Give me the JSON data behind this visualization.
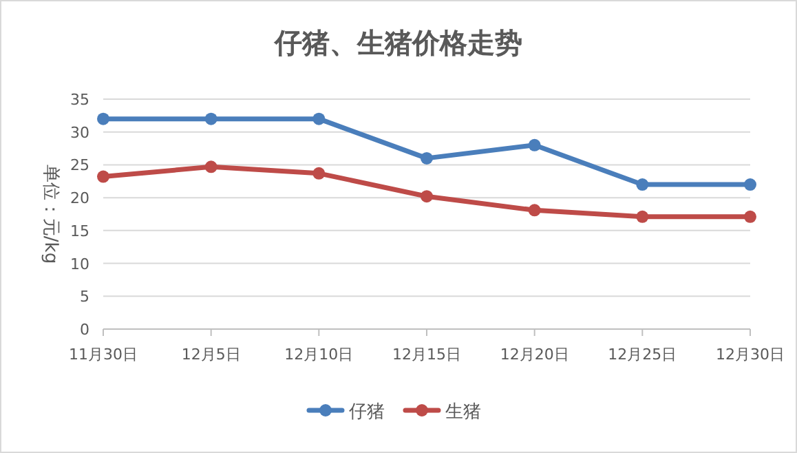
{
  "chart_data": {
    "type": "line",
    "title": "仔猪、生猪价格走势",
    "ylabel": "单位：元/kg",
    "categories": [
      "11月30日",
      "12月5日",
      "12月10日",
      "12月15日",
      "12月20日",
      "12月25日",
      "12月30日"
    ],
    "series": [
      {
        "name": "仔猪",
        "color": "#4a7ebb",
        "values": [
          32,
          32,
          32,
          26,
          28,
          22,
          22
        ]
      },
      {
        "name": "生猪",
        "color": "#be4b48",
        "values": [
          23.2,
          24.7,
          23.7,
          20.2,
          18.1,
          17.1,
          17.1
        ]
      }
    ],
    "ylim": [
      0,
      35
    ],
    "yticks": [
      0,
      5,
      10,
      15,
      20,
      25,
      30,
      35
    ],
    "grid": "y",
    "legend": "bottom",
    "marker": "circle",
    "line_style": "solid"
  }
}
